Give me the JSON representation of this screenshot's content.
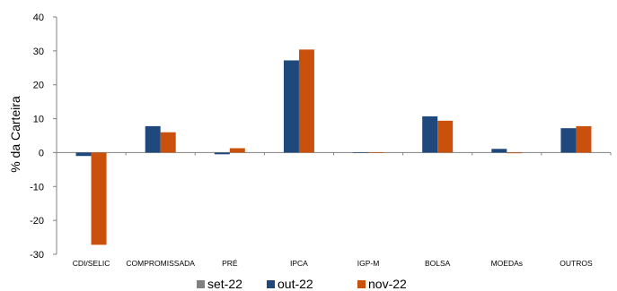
{
  "chart_data": {
    "type": "bar",
    "title": "",
    "xlabel": "",
    "ylabel": "% da Carteira",
    "ylim": [
      -30,
      40
    ],
    "yticks": [
      -30,
      -20,
      -10,
      0,
      10,
      20,
      30,
      40
    ],
    "grid": false,
    "legend_position": "bottom",
    "categories": [
      "CDI/SELIC",
      "COMPROMISSADA",
      "PRÉ",
      "IPCA",
      "IGP-M",
      "BOLSA",
      "MOEDAs",
      "OUTROS"
    ],
    "series": [
      {
        "name": "set-22",
        "color": "#808080",
        "values": [
          0,
          0,
          0,
          0,
          0,
          0,
          0,
          0
        ]
      },
      {
        "name": "out-22",
        "color": "#1f497d",
        "values": [
          -1.0,
          7.8,
          -0.5,
          27.2,
          0.0,
          10.7,
          1.1,
          7.2
        ]
      },
      {
        "name": "nov-22",
        "color": "#c9510c",
        "values": [
          -27.2,
          6.0,
          1.3,
          30.4,
          0.0,
          9.4,
          -0.2,
          7.8
        ]
      }
    ]
  }
}
